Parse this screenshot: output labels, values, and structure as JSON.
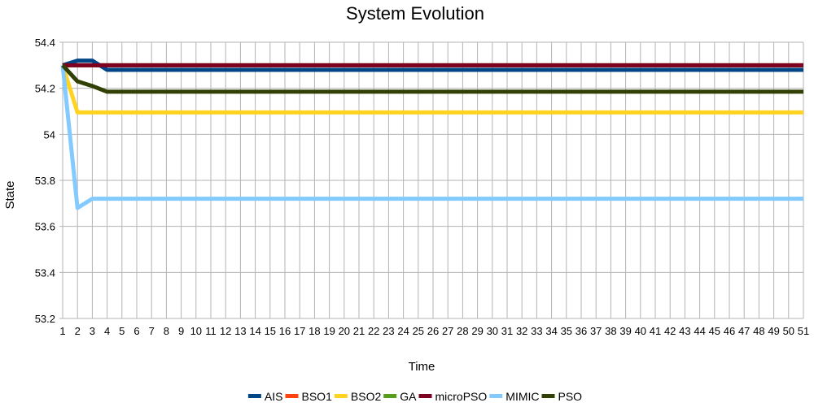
{
  "chart_data": {
    "type": "line",
    "title": "System Evolution",
    "xlabel": "Time",
    "ylabel": "State",
    "x": [
      1,
      2,
      3,
      4,
      5,
      6,
      7,
      8,
      9,
      10,
      11,
      12,
      13,
      14,
      15,
      16,
      17,
      18,
      19,
      20,
      21,
      22,
      23,
      24,
      25,
      26,
      27,
      28,
      29,
      30,
      31,
      32,
      33,
      34,
      35,
      36,
      37,
      38,
      39,
      40,
      41,
      42,
      43,
      44,
      45,
      46,
      47,
      48,
      49,
      50,
      51
    ],
    "ylim": [
      53.2,
      54.4
    ],
    "yticks": [
      53.2,
      53.4,
      53.6,
      53.8,
      54,
      54.2,
      54.4
    ],
    "ytick_labels": [
      "53.2",
      "53.4",
      "53.6",
      "53.8",
      "54",
      "54.2",
      "54.4"
    ],
    "grid": true,
    "legend_position": "bottom",
    "series": [
      {
        "name": "AIS",
        "color": "#004586",
        "values": [
          54.3,
          54.32,
          54.32,
          54.28,
          54.28,
          54.28,
          54.28,
          54.28,
          54.28,
          54.28,
          54.28,
          54.28,
          54.28,
          54.28,
          54.28,
          54.28,
          54.28,
          54.28,
          54.28,
          54.28,
          54.28,
          54.28,
          54.28,
          54.28,
          54.28,
          54.28,
          54.28,
          54.28,
          54.28,
          54.28,
          54.28,
          54.28,
          54.28,
          54.28,
          54.28,
          54.28,
          54.28,
          54.28,
          54.28,
          54.28,
          54.28,
          54.28,
          54.28,
          54.28,
          54.28,
          54.28,
          54.28,
          54.28,
          54.28,
          54.28,
          54.28
        ]
      },
      {
        "name": "BSO1",
        "color": "#ff420e",
        "values": [
          54.3,
          54.3,
          54.3,
          54.3,
          54.3,
          54.3,
          54.3,
          54.3,
          54.3,
          54.3,
          54.3,
          54.3,
          54.3,
          54.3,
          54.3,
          54.3,
          54.3,
          54.3,
          54.3,
          54.3,
          54.3,
          54.3,
          54.3,
          54.3,
          54.3,
          54.3,
          54.3,
          54.3,
          54.3,
          54.3,
          54.3,
          54.3,
          54.3,
          54.3,
          54.3,
          54.3,
          54.3,
          54.3,
          54.3,
          54.3,
          54.3,
          54.3,
          54.3,
          54.3,
          54.3,
          54.3,
          54.3,
          54.3,
          54.3,
          54.3,
          54.3
        ]
      },
      {
        "name": "BSO2",
        "color": "#ffd320",
        "values": [
          54.3,
          54.095,
          54.095,
          54.095,
          54.095,
          54.095,
          54.095,
          54.095,
          54.095,
          54.095,
          54.095,
          54.095,
          54.095,
          54.095,
          54.095,
          54.095,
          54.095,
          54.095,
          54.095,
          54.095,
          54.095,
          54.095,
          54.095,
          54.095,
          54.095,
          54.095,
          54.095,
          54.095,
          54.095,
          54.095,
          54.095,
          54.095,
          54.095,
          54.095,
          54.095,
          54.095,
          54.095,
          54.095,
          54.095,
          54.095,
          54.095,
          54.095,
          54.095,
          54.095,
          54.095,
          54.095,
          54.095,
          54.095,
          54.095,
          54.095,
          54.095
        ]
      },
      {
        "name": "GA",
        "color": "#579d1c",
        "values": [
          54.3,
          54.3,
          54.3,
          54.3,
          54.3,
          54.3,
          54.3,
          54.3,
          54.3,
          54.3,
          54.3,
          54.3,
          54.3,
          54.3,
          54.3,
          54.3,
          54.3,
          54.3,
          54.3,
          54.3,
          54.3,
          54.3,
          54.3,
          54.3,
          54.3,
          54.3,
          54.3,
          54.3,
          54.3,
          54.3,
          54.3,
          54.3,
          54.3,
          54.3,
          54.3,
          54.3,
          54.3,
          54.3,
          54.3,
          54.3,
          54.3,
          54.3,
          54.3,
          54.3,
          54.3,
          54.3,
          54.3,
          54.3,
          54.3,
          54.3,
          54.3
        ]
      },
      {
        "name": "microPSO",
        "color": "#7e0021",
        "values": [
          54.3,
          54.3,
          54.3,
          54.3,
          54.3,
          54.3,
          54.3,
          54.3,
          54.3,
          54.3,
          54.3,
          54.3,
          54.3,
          54.3,
          54.3,
          54.3,
          54.3,
          54.3,
          54.3,
          54.3,
          54.3,
          54.3,
          54.3,
          54.3,
          54.3,
          54.3,
          54.3,
          54.3,
          54.3,
          54.3,
          54.3,
          54.3,
          54.3,
          54.3,
          54.3,
          54.3,
          54.3,
          54.3,
          54.3,
          54.3,
          54.3,
          54.3,
          54.3,
          54.3,
          54.3,
          54.3,
          54.3,
          54.3,
          54.3,
          54.3,
          54.3
        ]
      },
      {
        "name": "MIMIC",
        "color": "#83caff",
        "values": [
          54.3,
          53.68,
          53.72,
          53.72,
          53.72,
          53.72,
          53.72,
          53.72,
          53.72,
          53.72,
          53.72,
          53.72,
          53.72,
          53.72,
          53.72,
          53.72,
          53.72,
          53.72,
          53.72,
          53.72,
          53.72,
          53.72,
          53.72,
          53.72,
          53.72,
          53.72,
          53.72,
          53.72,
          53.72,
          53.72,
          53.72,
          53.72,
          53.72,
          53.72,
          53.72,
          53.72,
          53.72,
          53.72,
          53.72,
          53.72,
          53.72,
          53.72,
          53.72,
          53.72,
          53.72,
          53.72,
          53.72,
          53.72,
          53.72,
          53.72,
          53.72
        ]
      },
      {
        "name": "PSO",
        "color": "#314004",
        "values": [
          54.3,
          54.23,
          54.21,
          54.185,
          54.185,
          54.185,
          54.185,
          54.185,
          54.185,
          54.185,
          54.185,
          54.185,
          54.185,
          54.185,
          54.185,
          54.185,
          54.185,
          54.185,
          54.185,
          54.185,
          54.185,
          54.185,
          54.185,
          54.185,
          54.185,
          54.185,
          54.185,
          54.185,
          54.185,
          54.185,
          54.185,
          54.185,
          54.185,
          54.185,
          54.185,
          54.185,
          54.185,
          54.185,
          54.185,
          54.185,
          54.185,
          54.185,
          54.185,
          54.185,
          54.185,
          54.185,
          54.185,
          54.185,
          54.185,
          54.185,
          54.185
        ]
      }
    ],
    "draw_order": [
      "BSO1",
      "GA",
      "BSO2",
      "MIMIC",
      "AIS",
      "microPSO",
      "PSO"
    ]
  }
}
